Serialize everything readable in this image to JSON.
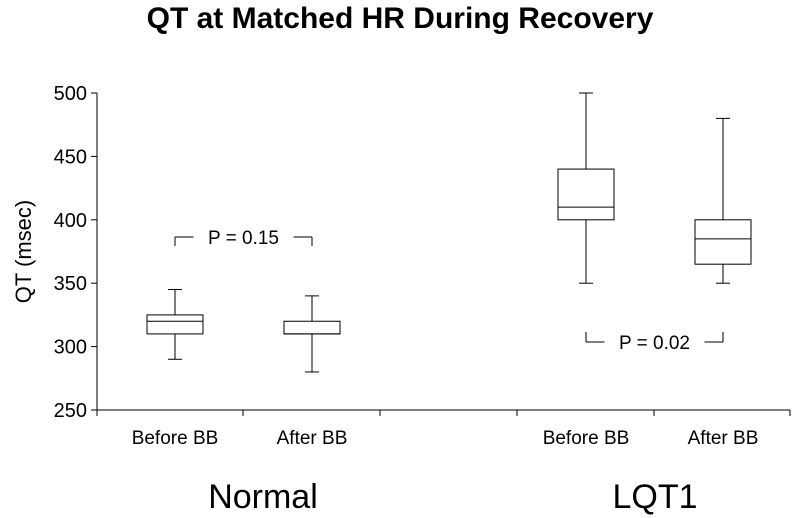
{
  "chart_data": {
    "type": "box",
    "title": "QT at Matched HR During Recovery",
    "ylabel": "QT (msec)",
    "xlabel": "",
    "ylim": [
      250,
      500
    ],
    "yticks": [
      250,
      300,
      350,
      400,
      450,
      500
    ],
    "groups": [
      {
        "name": "Normal",
        "categories": [
          "Before BB",
          "After BB"
        ],
        "boxes": [
          {
            "category": "Before BB",
            "min": 290,
            "q1": 310,
            "median": 320,
            "q3": 325,
            "max": 345
          },
          {
            "category": "After BB",
            "min": 280,
            "q1": 310,
            "median": 310,
            "q3": 320,
            "max": 340
          }
        ],
        "annotation": "P = 0.15"
      },
      {
        "name": "LQT1",
        "categories": [
          "Before BB",
          "After BB"
        ],
        "boxes": [
          {
            "category": "Before BB",
            "min": 350,
            "q1": 400,
            "median": 410,
            "q3": 440,
            "max": 500
          },
          {
            "category": "After BB",
            "min": 350,
            "q1": 365,
            "median": 385,
            "q3": 400,
            "max": 480
          }
        ],
        "annotation": "P = 0.02"
      }
    ],
    "grid": false,
    "legend": "none"
  }
}
